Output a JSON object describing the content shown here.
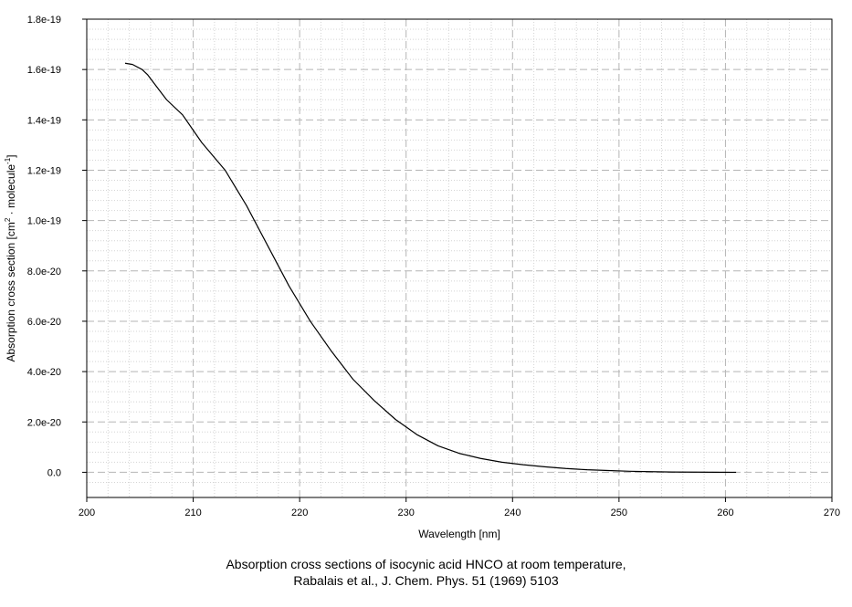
{
  "chart_data": {
    "type": "line",
    "xlabel": "Wavelength [nm]",
    "ylabel": {
      "prefix": "Absorption cross section [cm",
      "sup1": "2",
      "mid": " · molecule",
      "sup2": "-1",
      "suffix": "]"
    },
    "xlim": [
      200,
      270
    ],
    "ylim": [
      -1e-20,
      1.8e-19
    ],
    "x_ticks": [
      200,
      210,
      220,
      230,
      240,
      250,
      260,
      270
    ],
    "x_tick_labels": [
      "200",
      "210",
      "220",
      "230",
      "240",
      "250",
      "260",
      "270"
    ],
    "y_ticks": [
      0,
      2e-20,
      4e-20,
      6e-20,
      8e-20,
      1e-19,
      1.2e-19,
      1.4e-19,
      1.6e-19,
      1.8e-19
    ],
    "y_tick_labels": [
      "0.0",
      "2.0e-20",
      "4.0e-20",
      "6.0e-20",
      "8.0e-20",
      "1.0e-19",
      "1.2e-19",
      "1.4e-19",
      "1.6e-19",
      "1.8e-19"
    ],
    "grid": true,
    "series": [
      {
        "color": "#000000",
        "x": [
          203.6,
          204.3,
          205.2,
          205.7,
          206.6,
          207.5,
          209.0,
          210.8,
          213.0,
          215.0,
          217.0,
          219.0,
          221.0,
          223.0,
          225.0,
          227.0,
          229.0,
          231.0,
          233.0,
          235.0,
          237.0,
          239.0,
          241.0,
          243.0,
          245.0,
          247.0,
          249.0,
          251.0,
          253.0,
          255.0,
          257.0,
          259.0,
          261.0
        ],
        "y": [
          1.625e-19,
          1.62e-19,
          1.6e-19,
          1.58e-19,
          1.53e-19,
          1.48e-19,
          1.42e-19,
          1.31e-19,
          1.2e-19,
          1.06e-19,
          9e-20,
          7.4e-20,
          6e-20,
          4.8e-20,
          3.7e-20,
          2.85e-20,
          2.1e-20,
          1.5e-20,
          1.05e-20,
          7.5e-21,
          5.5e-21,
          4e-21,
          3e-21,
          2.2e-21,
          1.5e-21,
          1e-21,
          7e-22,
          4e-22,
          2.5e-22,
          1.2e-22,
          6e-23,
          3e-23,
          0
        ]
      }
    ]
  },
  "caption": {
    "line1": "Absorption cross sections of isocynic acid HNCO at room temperature,",
    "line2": "Rabalais et al., J. Chem. Phys. 51 (1969) 5103"
  }
}
